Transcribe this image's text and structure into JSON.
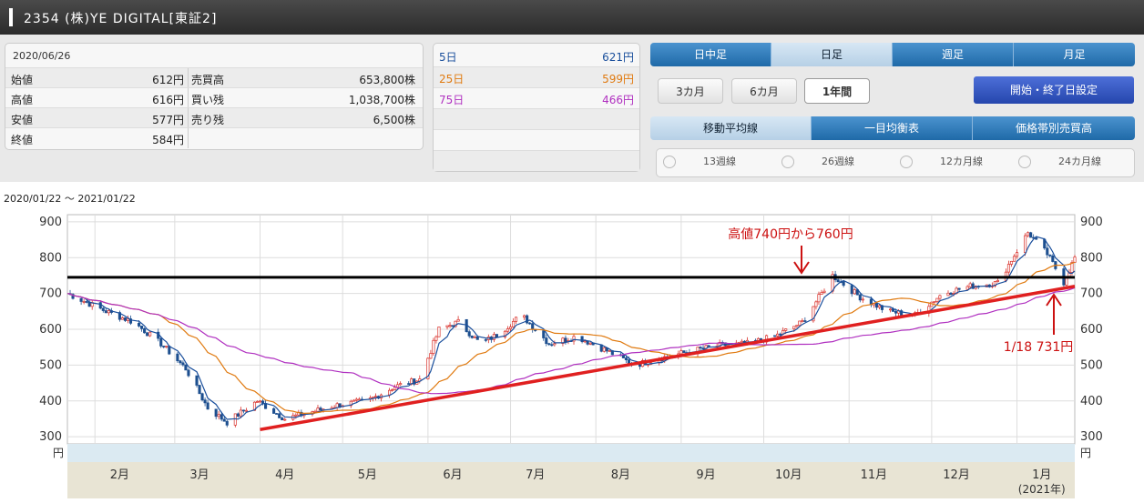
{
  "header": {
    "title": "2354 (株)YE DIGITAL[東証2]"
  },
  "info": {
    "date": "2020/06/26",
    "rows": [
      {
        "l1": "始値",
        "v1": "612円",
        "l2": "売買高",
        "v2": "653,800株"
      },
      {
        "l1": "高値",
        "v1": "616円",
        "l2": "買い残",
        "v2": "1,038,700株"
      },
      {
        "l1": "安値",
        "v1": "577円",
        "l2": "売り残",
        "v2": "6,500株"
      },
      {
        "l1": "終値",
        "v1": "584円",
        "l2": "",
        "v2": ""
      }
    ]
  },
  "moving_avg": [
    {
      "label": "5日",
      "value": "621円",
      "color": "#1a4f9c"
    },
    {
      "label": "25日",
      "value": "599円",
      "color": "#e07a10"
    },
    {
      "label": "75日",
      "value": "466円",
      "color": "#b030c0"
    }
  ],
  "period_tabs": [
    "日中足",
    "日足",
    "週足",
    "月足"
  ],
  "range_buttons": [
    "3カ月",
    "6カ月",
    "1年間"
  ],
  "date_setting_button": "開始・終了日設定",
  "indicator_tabs": [
    "移動平均線",
    "一目均衡表",
    "価格帯別売買高"
  ],
  "ma_checks": [
    "13週線",
    "26週線",
    "12カ月線",
    "24カ月線"
  ],
  "date_range": "2020/01/22 〜 2021/01/22",
  "chart_data": {
    "type": "candlestick",
    "y_ticks": [
      300,
      400,
      500,
      600,
      700,
      800,
      900
    ],
    "ylim": [
      280,
      920
    ],
    "y_unit": "円",
    "months": [
      "2月",
      "3月",
      "4月",
      "5月",
      "6月",
      "7月",
      "8月",
      "9月",
      "10月",
      "11月",
      "12月",
      "1月"
    ],
    "year_label": "(2021年)",
    "horizontal_line": 745,
    "trendline": {
      "from": [
        "2020/04/01",
        320
      ],
      "to": [
        "2021/01/22",
        720
      ]
    },
    "annotations": [
      {
        "text": "高値740円から760円",
        "color": "#cc1111"
      },
      {
        "text": "1/18 731円",
        "color": "#cc1111"
      }
    ],
    "price_path": [
      [
        "2020/01/22",
        700
      ],
      [
        "2020/02/05",
        650
      ],
      [
        "2020/02/15",
        620
      ],
      [
        "2020/02/25",
        560
      ],
      [
        "2020/03/05",
        490
      ],
      [
        "2020/03/13",
        380
      ],
      [
        "2020/03/20",
        340
      ],
      [
        "2020/03/31",
        400
      ],
      [
        "2020/04/10",
        350
      ],
      [
        "2020/04/20",
        370
      ],
      [
        "2020/04/30",
        390
      ],
      [
        "2020/05/10",
        400
      ],
      [
        "2020/05/20",
        440
      ],
      [
        "2020/05/29",
        460
      ],
      [
        "2020/06/05",
        600
      ],
      [
        "2020/06/12",
        620
      ],
      [
        "2020/06/20",
        560
      ],
      [
        "2020/06/26",
        584
      ],
      [
        "2020/07/05",
        640
      ],
      [
        "2020/07/15",
        560
      ],
      [
        "2020/07/25",
        580
      ],
      [
        "2020/08/05",
        540
      ],
      [
        "2020/08/15",
        500
      ],
      [
        "2020/08/25",
        520
      ],
      [
        "2020/09/05",
        540
      ],
      [
        "2020/09/15",
        555
      ],
      [
        "2020/09/25",
        560
      ],
      [
        "2020/10/05",
        580
      ],
      [
        "2020/10/15",
        620
      ],
      [
        "2020/10/22",
        700
      ],
      [
        "2020/10/26",
        750
      ],
      [
        "2020/11/05",
        690
      ],
      [
        "2020/11/15",
        650
      ],
      [
        "2020/11/25",
        640
      ],
      [
        "2020/12/05",
        700
      ],
      [
        "2020/12/15",
        720
      ],
      [
        "2020/12/25",
        730
      ],
      [
        "2021/01/05",
        870
      ],
      [
        "2021/01/12",
        810
      ],
      [
        "2021/01/18",
        731
      ],
      [
        "2021/01/22",
        800
      ]
    ],
    "ma_short_color": "#1a4f9c",
    "ma_mid_color": "#e07a10",
    "ma_long_color": "#b030c0"
  }
}
